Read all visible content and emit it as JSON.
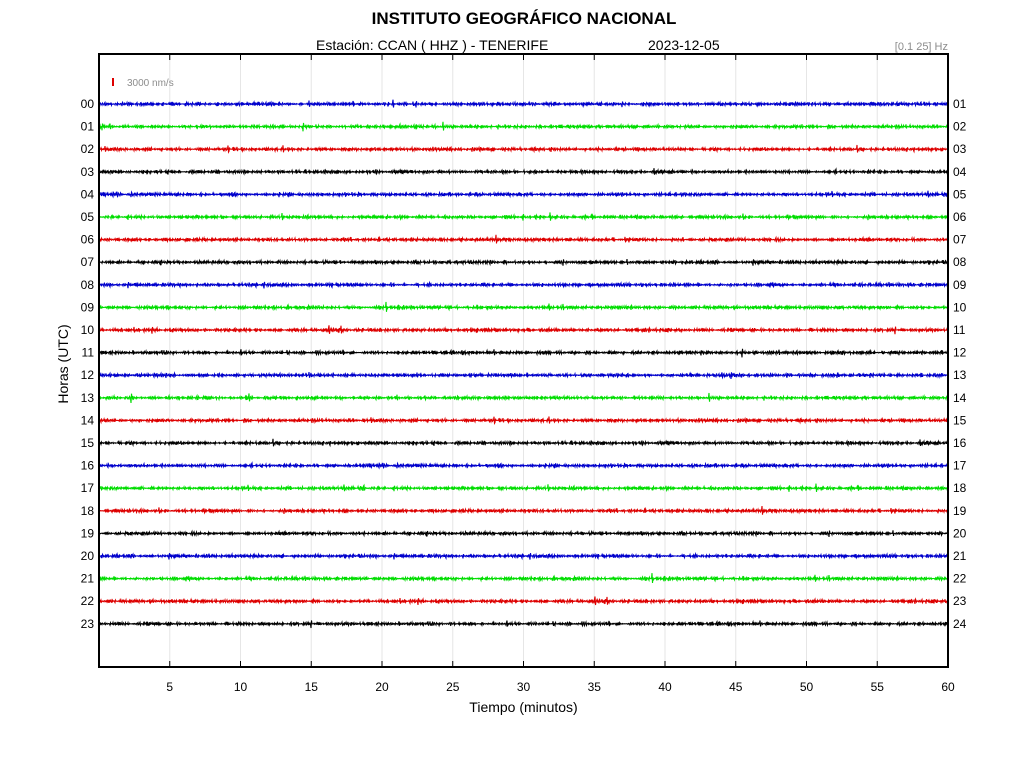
{
  "chart_data": {
    "type": "line",
    "title": "INSTITUTO GEOGRÁFICO NACIONAL",
    "station_label": "Estación:  CCAN ( HHZ ) - TENERIFE",
    "date": "2023-12-05",
    "filter": "[0.1 25] Hz",
    "scale_label": "3000 nm/s",
    "xlabel": "Tiempo (minutos)",
    "ylabel": "Horas (UTC)",
    "xlim": [
      0,
      60
    ],
    "x_ticks": [
      5,
      10,
      15,
      20,
      25,
      30,
      35,
      40,
      45,
      50,
      55,
      60
    ],
    "left_hour_labels": [
      "00",
      "01",
      "02",
      "03",
      "04",
      "05",
      "06",
      "07",
      "08",
      "09",
      "10",
      "11",
      "12",
      "13",
      "14",
      "15",
      "16",
      "17",
      "18",
      "19",
      "20",
      "21",
      "22",
      "23"
    ],
    "right_hour_labels": [
      "01",
      "02",
      "03",
      "04",
      "05",
      "06",
      "07",
      "08",
      "09",
      "10",
      "11",
      "12",
      "13",
      "14",
      "15",
      "16",
      "17",
      "18",
      "19",
      "20",
      "21",
      "22",
      "23",
      "24"
    ],
    "trace_colors": [
      "#0000cc",
      "#00dd00",
      "#dd0000",
      "#000000"
    ],
    "scale_color": "#dd0000",
    "grid": true
  }
}
